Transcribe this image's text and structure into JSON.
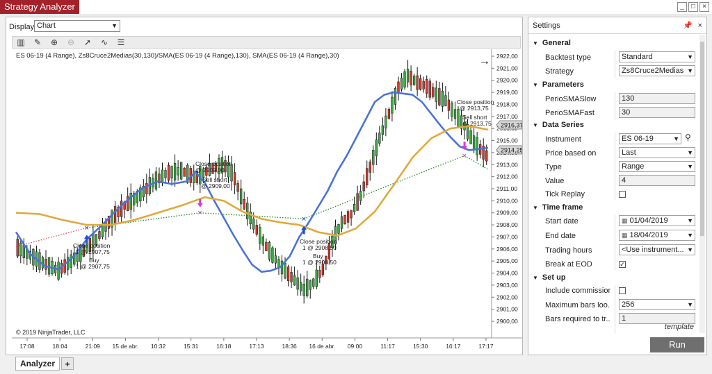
{
  "window": {
    "title": "Strategy Analyzer",
    "controls": [
      "_",
      "□",
      "×"
    ]
  },
  "display": {
    "label": "Display",
    "value": "Chart"
  },
  "toolbar_icons": [
    "bar-style-icon",
    "draw-pencil-icon",
    "zoom-in-icon",
    "zoom-out-icon",
    "pointer-icon",
    "indicator-icon",
    "properties-list-icon"
  ],
  "chart": {
    "header": "ES 06-19 (4 Range), Zs8Cruce2Medias(30,130)/SMA(ES 06-19 (4 Range),130), SMA(ES 06-19 (4 Range),30)",
    "copyright": "© 2019 NinjaTrader, LLC",
    "price_current_high": "2916,37",
    "price_current_low": "2914,25",
    "annotations": [
      {
        "text1": "Close position",
        "text2": "1 @ 2907,75"
      },
      {
        "text1": "Buy",
        "text2": "1 @ 2907,75"
      },
      {
        "text1": "Close position",
        "text2": "@ 2909,00"
      },
      {
        "text1": "Sell short",
        "text2": "@ 2909,00"
      },
      {
        "text1": "Close position",
        "text2": "1 @ 2908,50"
      },
      {
        "text1": "Buy",
        "text2": "1 @ 2908,50"
      },
      {
        "text1": "Close position",
        "text2": "@ 2913,75"
      },
      {
        "text1": "Sell short",
        "text2": "@ 2913,75"
      }
    ]
  },
  "chart_data": {
    "type": "candlestick",
    "x_ticks": [
      "17:08",
      "18:04",
      "21:09",
      "15 de abr.",
      "10:32",
      "15:31",
      "16:18",
      "17:13",
      "18:36",
      "16 de abr.",
      "09:00",
      "11:17",
      "15:30",
      "16:17",
      "17:17"
    ],
    "y_ticks": [
      "2922,00",
      "2921,00",
      "2920,00",
      "2919,00",
      "2918,00",
      "2917,00",
      "2916,00",
      "2915,00",
      "2914,00",
      "2913,00",
      "2912,00",
      "2911,00",
      "2910,00",
      "2909,00",
      "2908,00",
      "2907,00",
      "2906,00",
      "2905,00",
      "2904,00",
      "2903,00",
      "2902,00",
      "2901,00",
      "2900,00"
    ],
    "ylim": [
      2899.9,
      2922.5
    ],
    "close_path": [
      [
        0,
        2906.2
      ],
      [
        5,
        2905.0
      ],
      [
        9,
        2904.2
      ],
      [
        13,
        2905.4
      ],
      [
        17,
        2906.8
      ],
      [
        20,
        2908.4
      ],
      [
        23,
        2909.6
      ],
      [
        26,
        2910.4
      ],
      [
        29,
        2911.5
      ],
      [
        32,
        2912.3
      ],
      [
        35,
        2912.5
      ],
      [
        38,
        2911.9
      ],
      [
        41,
        2912.6
      ],
      [
        44,
        2913.0
      ],
      [
        46,
        2912.2
      ],
      [
        48,
        2910.0
      ],
      [
        50,
        2908.3
      ],
      [
        53,
        2906.2
      ],
      [
        56,
        2904.6
      ],
      [
        59,
        2903.4
      ],
      [
        61,
        2902.6
      ],
      [
        63,
        2903.2
      ],
      [
        65,
        2904.3
      ],
      [
        67,
        2906.6
      ],
      [
        69,
        2908.2
      ],
      [
        71,
        2908.9
      ],
      [
        73,
        2910.4
      ],
      [
        75,
        2912.8
      ],
      [
        77,
        2915.2
      ],
      [
        79,
        2917.2
      ],
      [
        81,
        2919.4
      ],
      [
        83,
        2920.4
      ],
      [
        85,
        2919.8
      ],
      [
        87,
        2919.5
      ],
      [
        89,
        2918.8
      ],
      [
        91,
        2918.3
      ],
      [
        93,
        2917.2
      ],
      [
        95,
        2916.2
      ],
      [
        97,
        2914.8
      ],
      [
        100,
        2913.6
      ]
    ],
    "series": [
      {
        "name": "SMA(ES 06-19 (4 Range),30)",
        "color": "#4a73d8",
        "points": [
          [
            0,
            2907.4
          ],
          [
            3,
            2905.6
          ],
          [
            6,
            2904.6
          ],
          [
            9,
            2904.3
          ],
          [
            12,
            2905.3
          ],
          [
            15,
            2906.8
          ],
          [
            18,
            2907.9
          ],
          [
            21,
            2909.1
          ],
          [
            24,
            2910.2
          ],
          [
            27,
            2911.1
          ],
          [
            30,
            2911.6
          ],
          [
            33,
            2911.4
          ],
          [
            36,
            2911.6
          ],
          [
            38,
            2912.4
          ],
          [
            40,
            2911.5
          ],
          [
            42,
            2910.0
          ],
          [
            44,
            2908.6
          ],
          [
            46,
            2907.2
          ],
          [
            48,
            2905.9
          ],
          [
            50,
            2904.7
          ],
          [
            52,
            2904.1
          ],
          [
            54,
            2904.2
          ],
          [
            56,
            2904.5
          ],
          [
            58,
            2905.4
          ],
          [
            60,
            2907.0
          ],
          [
            62,
            2908.2
          ],
          [
            64,
            2909.5
          ],
          [
            66,
            2910.8
          ],
          [
            68,
            2912.4
          ],
          [
            70,
            2913.7
          ],
          [
            72,
            2915.2
          ],
          [
            74,
            2916.7
          ],
          [
            76,
            2918.2
          ],
          [
            78,
            2918.8
          ],
          [
            80,
            2919.0
          ],
          [
            82,
            2918.9
          ],
          [
            84,
            2918.8
          ],
          [
            86,
            2918.2
          ],
          [
            88,
            2917.2
          ],
          [
            90,
            2916.2
          ],
          [
            92,
            2915.3
          ],
          [
            94,
            2914.5
          ],
          [
            96,
            2914.2
          ],
          [
            100,
            2914.4
          ]
        ]
      },
      {
        "name": "SMA(ES 06-19 (4 Range),130)",
        "color": "#e0a93a",
        "points": [
          [
            0,
            2909.0
          ],
          [
            5,
            2908.9
          ],
          [
            10,
            2908.4
          ],
          [
            15,
            2908.0
          ],
          [
            20,
            2908.0
          ],
          [
            25,
            2908.4
          ],
          [
            30,
            2909.0
          ],
          [
            35,
            2909.6
          ],
          [
            40,
            2910.3
          ],
          [
            44,
            2910.0
          ],
          [
            48,
            2909.1
          ],
          [
            52,
            2908.5
          ],
          [
            56,
            2908.2
          ],
          [
            60,
            2908.0
          ],
          [
            64,
            2907.4
          ],
          [
            68,
            2907.1
          ],
          [
            72,
            2907.7
          ],
          [
            76,
            2909.1
          ],
          [
            80,
            2911.3
          ],
          [
            84,
            2913.6
          ],
          [
            88,
            2915.2
          ],
          [
            92,
            2916.0
          ],
          [
            96,
            2916.2
          ],
          [
            100,
            2915.9
          ]
        ]
      }
    ],
    "trade_lines": [
      {
        "from": [
          0,
          2906.2
        ],
        "to": [
          15,
          2907.75
        ],
        "color": "#e05050",
        "style": "dotted"
      },
      {
        "from": [
          15,
          2907.75
        ],
        "to": [
          39,
          2909.0
        ],
        "color": "#2e8b2e",
        "style": "dotted"
      },
      {
        "from": [
          39,
          2909.0
        ],
        "to": [
          61,
          2908.5
        ],
        "color": "#2e8b2e",
        "style": "dotted"
      },
      {
        "from": [
          61,
          2908.5
        ],
        "to": [
          95,
          2913.75
        ],
        "color": "#2e8b2e",
        "style": "dotted"
      },
      {
        "from": [
          95,
          2913.75
        ],
        "to": [
          100,
          2912.6
        ],
        "color": "#2e8b2e",
        "style": "dotted"
      }
    ],
    "signals": [
      {
        "x": 15,
        "price": 2907.75,
        "dir": "buy"
      },
      {
        "x": 39,
        "price": 2909.0,
        "dir": "sell"
      },
      {
        "x": 61,
        "price": 2908.5,
        "dir": "buy"
      },
      {
        "x": 95,
        "price": 2913.75,
        "dir": "sell"
      }
    ]
  },
  "settings": {
    "title": "Settings",
    "pin_icon": "pin-icon",
    "sections": {
      "general": "General",
      "parameters": "Parameters",
      "data_series": "Data Series",
      "time_frame": "Time frame",
      "set_up": "Set up"
    },
    "rows": {
      "backtest_type": {
        "label": "Backtest type",
        "value": "Standard"
      },
      "strategy": {
        "label": "Strategy",
        "value": "Zs8Cruce2Medias"
      },
      "perio_slow": {
        "label": "PerioSMASlow",
        "value": "130"
      },
      "perio_fast": {
        "label": "PerioSMAFast",
        "value": "30"
      },
      "instrument": {
        "label": "Instrument",
        "value": "ES 06-19"
      },
      "price_based_on": {
        "label": "Price based on",
        "value": "Last"
      },
      "type": {
        "label": "Type",
        "value": "Range"
      },
      "value": {
        "label": "Value",
        "value": "4"
      },
      "tick_replay": {
        "label": "Tick Replay",
        "checked": false
      },
      "start_date": {
        "label": "Start date",
        "value": "01/04/2019"
      },
      "end_date": {
        "label": "End date",
        "value": "18/04/2019"
      },
      "trading_hours": {
        "label": "Trading hours",
        "value": "<Use instrument..."
      },
      "break_at_eod": {
        "label": "Break at EOD",
        "checked": true
      },
      "include_commission": {
        "label": "Include commission",
        "checked": false
      },
      "max_bars": {
        "label": "Maximum bars loo...",
        "value": "256"
      },
      "bars_required": {
        "label": "Bars required to tr...",
        "value": "1"
      }
    },
    "template_link": "template",
    "run_label": "Run"
  },
  "tabs": {
    "analyzer": "Analyzer",
    "add": "+"
  }
}
